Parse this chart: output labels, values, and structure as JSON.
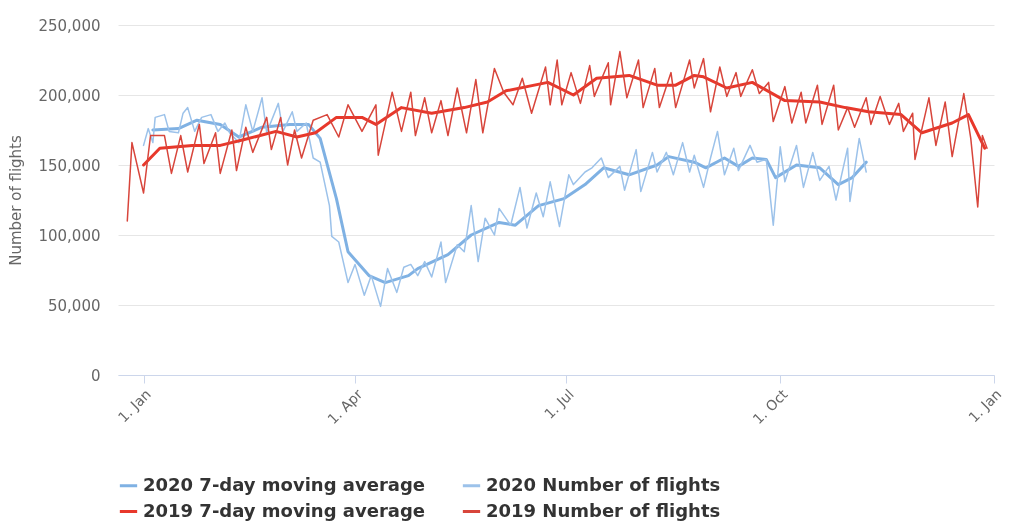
{
  "chart_data": {
    "type": "line",
    "ylabel": "Number of flights",
    "xlim": [
      "2019-12-21",
      "2021-01-01"
    ],
    "xticks": [
      {
        "value": "2020-01-01",
        "label": "1. Jan"
      },
      {
        "value": "2020-04-01",
        "label": "1. Apr"
      },
      {
        "value": "2020-07-01",
        "label": "1. Jul"
      },
      {
        "value": "2020-10-01",
        "label": "1. Oct"
      },
      {
        "value": "2021-01-01",
        "label": "1. Jan"
      }
    ],
    "ylim": [
      0,
      250000
    ],
    "yticks": [
      0,
      {
        "value": 50000,
        "label": "50,000"
      },
      {
        "value": 100000,
        "label": "100,000"
      },
      {
        "value": 150000,
        "label": "150,000"
      },
      {
        "value": 200000,
        "label": "200,000"
      },
      {
        "value": 250000,
        "label": "250,000"
      }
    ],
    "grid": "y",
    "legend": "bottom",
    "line_style": "solid",
    "series": [
      {
        "name": "2020 7-day moving average",
        "color": "#7fb1e3",
        "x": [
          "2020-01-05",
          "2020-01-16",
          "2020-01-24",
          "2020-02-03",
          "2020-02-11",
          "2020-02-21",
          "2020-03-04",
          "2020-03-12",
          "2020-03-17",
          "2020-03-24",
          "2020-03-29",
          "2020-04-07",
          "2020-04-14",
          "2020-04-24",
          "2020-04-28",
          "2020-05-11",
          "2020-05-21",
          "2020-06-02",
          "2020-06-09",
          "2020-06-19",
          "2020-06-30",
          "2020-07-09",
          "2020-07-17",
          "2020-07-28",
          "2020-08-09",
          "2020-08-14",
          "2020-08-25",
          "2020-08-30",
          "2020-09-07",
          "2020-09-13",
          "2020-09-19",
          "2020-09-25",
          "2020-09-29",
          "2020-10-08",
          "2020-10-18",
          "2020-10-26",
          "2020-11-01",
          "2020-11-07"
        ],
        "values": [
          175000,
          176000,
          182000,
          179000,
          170000,
          177000,
          179000,
          179000,
          169000,
          126000,
          88000,
          71000,
          66000,
          71000,
          76000,
          86000,
          100000,
          109000,
          107000,
          121000,
          126000,
          136000,
          148000,
          143000,
          150000,
          156000,
          152000,
          148000,
          155000,
          149000,
          155000,
          154000,
          141000,
          150000,
          148000,
          136000,
          141000,
          152000
        ]
      },
      {
        "name": "2020 Number of flights",
        "color": "#9cc2ea",
        "x": [
          "2020-01-01",
          "2020-01-03",
          "2020-01-05",
          "2020-01-06",
          "2020-01-10",
          "2020-01-12",
          "2020-01-16",
          "2020-01-18",
          "2020-01-20",
          "2020-01-23",
          "2020-01-26",
          "2020-01-30",
          "2020-02-02",
          "2020-02-05",
          "2020-02-07",
          "2020-02-11",
          "2020-02-14",
          "2020-02-17",
          "2020-02-21",
          "2020-02-23",
          "2020-02-28",
          "2020-03-01",
          "2020-03-05",
          "2020-03-07",
          "2020-03-11",
          "2020-03-14",
          "2020-03-17",
          "2020-03-21",
          "2020-03-22",
          "2020-03-25",
          "2020-03-29",
          "2020-04-01",
          "2020-04-05",
          "2020-04-08",
          "2020-04-12",
          "2020-04-15",
          "2020-04-19",
          "2020-04-22",
          "2020-04-25",
          "2020-04-28",
          "2020-05-01",
          "2020-05-04",
          "2020-05-08",
          "2020-05-10",
          "2020-05-15",
          "2020-05-18",
          "2020-05-21",
          "2020-05-24",
          "2020-05-27",
          "2020-05-31",
          "2020-06-02",
          "2020-06-07",
          "2020-06-11",
          "2020-06-14",
          "2020-06-18",
          "2020-06-21",
          "2020-06-24",
          "2020-06-28",
          "2020-07-02",
          "2020-07-04",
          "2020-07-09",
          "2020-07-12",
          "2020-07-16",
          "2020-07-19",
          "2020-07-24",
          "2020-07-26",
          "2020-07-31",
          "2020-08-02",
          "2020-08-07",
          "2020-08-09",
          "2020-08-13",
          "2020-08-16",
          "2020-08-20",
          "2020-08-23",
          "2020-08-25",
          "2020-08-29",
          "2020-09-01",
          "2020-09-04",
          "2020-09-07",
          "2020-09-11",
          "2020-09-13",
          "2020-09-18",
          "2020-09-21",
          "2020-09-25",
          "2020-09-28",
          "2020-10-01",
          "2020-10-03",
          "2020-10-08",
          "2020-10-11",
          "2020-10-15",
          "2020-10-18",
          "2020-10-22",
          "2020-10-25",
          "2020-10-30",
          "2020-10-31",
          "2020-11-04",
          "2020-11-07"
        ],
        "values": [
          164000,
          176000,
          166000,
          184000,
          186000,
          174000,
          173000,
          187000,
          191000,
          174000,
          184000,
          186000,
          174000,
          180000,
          173000,
          166000,
          193000,
          174000,
          198000,
          173000,
          194000,
          174000,
          188000,
          174000,
          180000,
          155000,
          152000,
          121000,
          99000,
          95000,
          66000,
          79000,
          57000,
          71000,
          49000,
          76000,
          59000,
          77000,
          79000,
          71000,
          81000,
          70000,
          95000,
          66000,
          93000,
          88000,
          121000,
          81000,
          112000,
          100000,
          119000,
          107000,
          134000,
          105000,
          130000,
          113000,
          138000,
          106000,
          143000,
          136000,
          145000,
          148000,
          155000,
          141000,
          149000,
          132000,
          161000,
          131000,
          159000,
          145000,
          159000,
          143000,
          166000,
          145000,
          157000,
          134000,
          155000,
          174000,
          143000,
          162000,
          146000,
          164000,
          152000,
          154000,
          107000,
          163000,
          138000,
          164000,
          134000,
          159000,
          139000,
          149000,
          125000,
          162000,
          124000,
          169000,
          145000
        ]
      },
      {
        "name": "2019 7-day moving average",
        "color": "#e8382b",
        "x": [
          "2020-01-01",
          "2020-01-08",
          "2020-01-22",
          "2020-02-03",
          "2020-02-13",
          "2020-02-27",
          "2020-03-07",
          "2020-03-15",
          "2020-03-24",
          "2020-04-04",
          "2020-04-10",
          "2020-04-21",
          "2020-05-04",
          "2020-05-18",
          "2020-05-28",
          "2020-06-05",
          "2020-06-23",
          "2020-07-04",
          "2020-07-14",
          "2020-07-28",
          "2020-08-09",
          "2020-08-17",
          "2020-08-25",
          "2020-08-29",
          "2020-09-08",
          "2020-09-19",
          "2020-10-03",
          "2020-10-18",
          "2020-10-29",
          "2020-11-08",
          "2020-11-22",
          "2020-12-01",
          "2020-12-14",
          "2020-12-21",
          "2020-12-28"
        ],
        "values": [
          150000,
          162000,
          164000,
          164000,
          168000,
          174000,
          170000,
          173000,
          184000,
          184000,
          179000,
          191000,
          187000,
          191000,
          195000,
          203000,
          209000,
          200000,
          212000,
          214000,
          207000,
          207000,
          214000,
          213000,
          205000,
          209000,
          196000,
          195000,
          191000,
          188000,
          186000,
          173000,
          180000,
          186000,
          162000
        ]
      },
      {
        "name": "2019 Number of flights",
        "color": "#d8453b",
        "x": [
          "2019-12-25",
          "2019-12-27",
          "2020-01-01",
          "2020-01-04",
          "2020-01-10",
          "2020-01-13",
          "2020-01-17",
          "2020-01-20",
          "2020-01-25",
          "2020-01-27",
          "2020-02-01",
          "2020-02-03",
          "2020-02-08",
          "2020-02-10",
          "2020-02-14",
          "2020-02-17",
          "2020-02-23",
          "2020-02-25",
          "2020-02-29",
          "2020-03-03",
          "2020-03-06",
          "2020-03-09",
          "2020-03-14",
          "2020-03-20",
          "2020-03-25",
          "2020-03-29",
          "2020-04-04",
          "2020-04-10",
          "2020-04-11",
          "2020-04-17",
          "2020-04-21",
          "2020-04-25",
          "2020-04-27",
          "2020-05-01",
          "2020-05-04",
          "2020-05-08",
          "2020-05-11",
          "2020-05-15",
          "2020-05-19",
          "2020-05-23",
          "2020-05-26",
          "2020-05-31",
          "2020-06-04",
          "2020-06-08",
          "2020-06-12",
          "2020-06-16",
          "2020-06-22",
          "2020-06-24",
          "2020-06-27",
          "2020-06-29",
          "2020-07-03",
          "2020-07-07",
          "2020-07-11",
          "2020-07-13",
          "2020-07-19",
          "2020-07-20",
          "2020-07-24",
          "2020-07-27",
          "2020-08-01",
          "2020-08-03",
          "2020-08-08",
          "2020-08-10",
          "2020-08-15",
          "2020-08-17",
          "2020-08-23",
          "2020-08-25",
          "2020-08-29",
          "2020-09-01",
          "2020-09-05",
          "2020-09-08",
          "2020-09-12",
          "2020-09-14",
          "2020-09-19",
          "2020-09-22",
          "2020-09-26",
          "2020-09-28",
          "2020-10-03",
          "2020-10-06",
          "2020-10-10",
          "2020-10-12",
          "2020-10-17",
          "2020-10-19",
          "2020-10-24",
          "2020-10-26",
          "2020-10-30",
          "2020-11-02",
          "2020-11-07",
          "2020-11-09",
          "2020-11-13",
          "2020-11-17",
          "2020-11-21",
          "2020-11-23",
          "2020-11-27",
          "2020-11-28",
          "2020-12-04",
          "2020-12-07",
          "2020-12-11",
          "2020-12-14",
          "2020-12-19",
          "2020-12-22",
          "2020-12-25",
          "2020-12-27",
          "2020-12-29"
        ],
        "values": [
          110000,
          166000,
          130000,
          171000,
          171000,
          144000,
          171000,
          145000,
          179000,
          151000,
          173000,
          144000,
          175000,
          146000,
          177000,
          159000,
          184000,
          161000,
          184000,
          150000,
          175000,
          155000,
          182000,
          186000,
          170000,
          193000,
          174000,
          193000,
          157000,
          202000,
          174000,
          202000,
          171000,
          198000,
          173000,
          196000,
          171000,
          205000,
          173000,
          211000,
          173000,
          219000,
          202000,
          193000,
          212000,
          187000,
          220000,
          193000,
          225000,
          193000,
          216000,
          194000,
          221000,
          199000,
          223000,
          193000,
          231000,
          198000,
          225000,
          191000,
          219000,
          191000,
          216000,
          191000,
          225000,
          205000,
          226000,
          188000,
          220000,
          199000,
          216000,
          199000,
          218000,
          201000,
          209000,
          181000,
          206000,
          180000,
          202000,
          180000,
          207000,
          179000,
          207000,
          175000,
          191000,
          177000,
          198000,
          179000,
          199000,
          179000,
          194000,
          174000,
          187000,
          154000,
          198000,
          164000,
          195000,
          156000,
          201000,
          169000,
          120000,
          171000,
          162000
        ]
      }
    ]
  }
}
